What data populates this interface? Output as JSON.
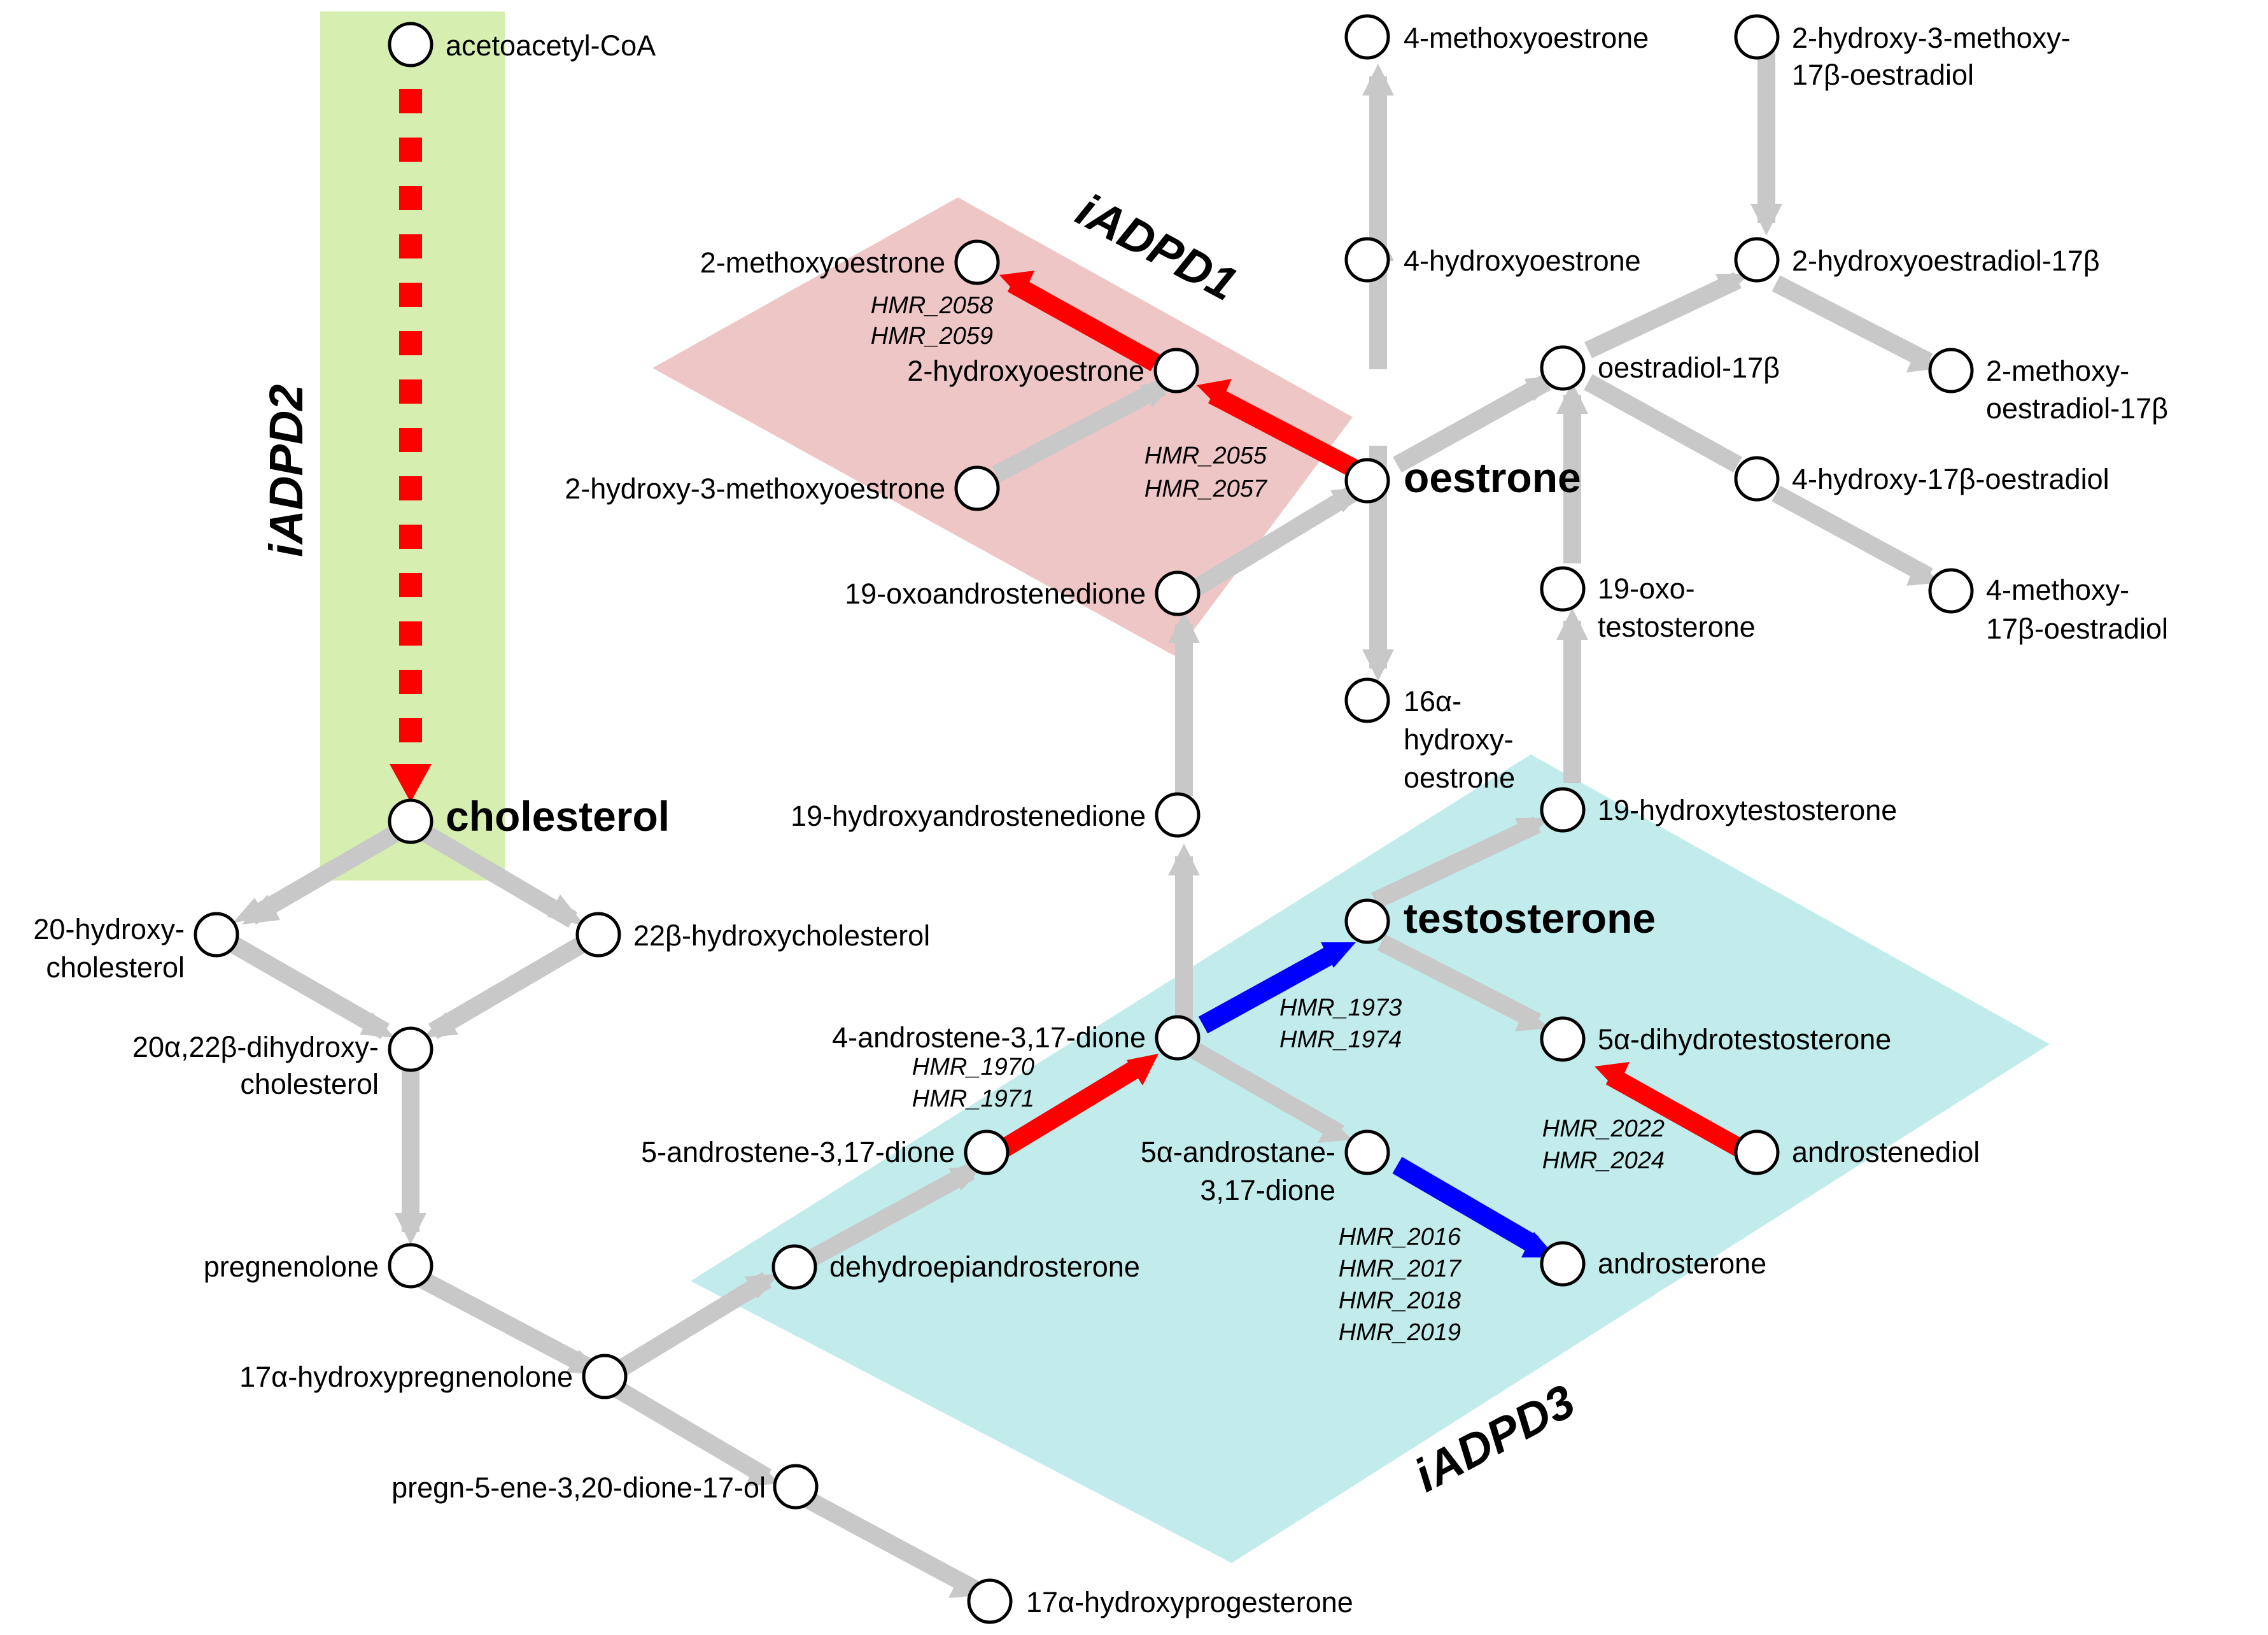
{
  "colors": {
    "gray_edge": "#c8c8c8",
    "red_edge": "#ff0000",
    "blue_edge": "#0000ff",
    "region_iADPD1": "#efc6c6",
    "region_iADPD2": "#d6efb0",
    "region_iADPD3": "#c2ecec"
  },
  "regions": {
    "iADPD1": "iADPD1",
    "iADPD2": "iADPD2",
    "iADPD3": "iADPD3"
  },
  "metabolites": {
    "acetoacetyl_coa": "acetoacetyl-CoA",
    "cholesterol": "cholesterol",
    "hydroxycholesterol_20_a": "20-hydroxy-",
    "hydroxycholesterol_20_b": "cholesterol",
    "hydroxycholesterol_22b": "22β-hydroxycholesterol",
    "dihydroxycholesterol_a": "20α,22β-dihydroxy-",
    "dihydroxycholesterol_b": "cholesterol",
    "pregnenolone": "pregnenolone",
    "hydroxypregnenolone_17a": "17α-hydroxypregnenolone",
    "pregnenedione": "pregn-5-ene-3,20-dione-17-ol",
    "hydroxyprogesterone_17a": "17α-hydroxyprogesterone",
    "dhea": "dehydroepiandrosterone",
    "androstenedione_5": "5-androstene-3,17-dione",
    "androstenedione_4": "4-androstene-3,17-dione",
    "androstanedione_a": "5α-androstane-",
    "androstanedione_b": "3,17-dione",
    "androsterone": "androsterone",
    "testosterone": "testosterone",
    "dihydrotestosterone": "5α-dihydrotestosterone",
    "androstenediol": "androstenediol",
    "hydroxytestosterone_19": "19-hydroxytestosterone",
    "oxotestosterone_a": "19-oxo-",
    "oxotestosterone_b": "testosterone",
    "hydroxyandrostenedione_19": "19-hydroxyandrostenedione",
    "oxoandrostenedione_19": "19-oxoandrostenedione",
    "oestrone": "oestrone",
    "hydroxyoestrone_16a_a": "16α-",
    "hydroxyoestrone_16a_b": "hydroxy-",
    "hydroxyoestrone_16a_c": "oestrone",
    "hydroxyoestrone_4": "4-hydroxyoestrone",
    "methoxyoestrone_4": "4-methoxyoestrone",
    "hydroxyoestrone_2": "2-hydroxyoestrone",
    "methoxyoestrone_2": "2-methoxyoestrone",
    "hydroxymethoxyoestrone": "2-hydroxy-3-methoxyoestrone",
    "oestradiol": "oestradiol-17β",
    "hydroxyoestradiol_4_17b": "4-hydroxy-17β-oestradiol",
    "methoxyoestradiol_4_a": "4-methoxy-",
    "methoxyoestradiol_4_b": "17β-oestradiol",
    "hydroxyoestradiol_2": "2-hydroxyoestradiol-17β",
    "methoxyoestradiol_2_a": "2-methoxy-",
    "methoxyoestradiol_2_b": "oestradiol-17β",
    "hydroxymethoxyoestradiol_a": "2-hydroxy-3-methoxy-",
    "hydroxymethoxyoestradiol_b": "17β-oestradiol"
  },
  "genes": {
    "g2058": "HMR_2058",
    "g2059": "HMR_2059",
    "g2055": "HMR_2055",
    "g2057": "HMR_2057",
    "g1973": "HMR_1973",
    "g1974": "HMR_1974",
    "g1970": "HMR_1970",
    "g1971": "HMR_1971",
    "g2022": "HMR_2022",
    "g2024": "HMR_2024",
    "g2016": "HMR_2016",
    "g2017": "HMR_2017",
    "g2018": "HMR_2018",
    "g2019": "HMR_2019"
  }
}
